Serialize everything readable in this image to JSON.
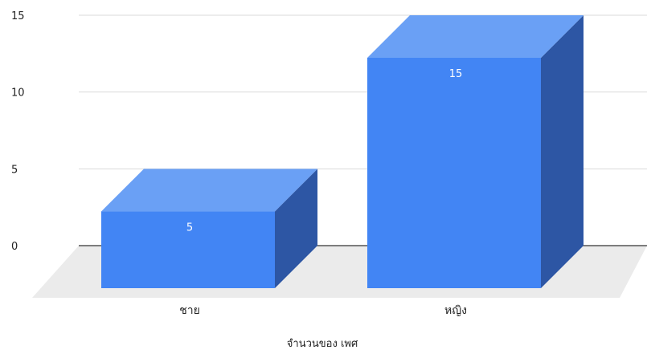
{
  "chart_data": {
    "type": "bar",
    "style": "3d",
    "categories": [
      "ชาย",
      "หญิง"
    ],
    "series": [
      {
        "values": [
          5,
          15
        ]
      }
    ],
    "data_labels": [
      "5",
      "15"
    ],
    "xlabel": "จำนวนของ เพศ",
    "ylabel": "",
    "ylim": [
      0,
      15
    ],
    "yticks": [
      0,
      5,
      10,
      15
    ],
    "grid": true,
    "legend": "none"
  },
  "colors": {
    "bar_front": "#4285f4",
    "bar_top": "#6aa0f5",
    "bar_side": "#2d56a4",
    "floor": "#ebebeb",
    "gridline": "#d9d9d9",
    "baseline": "#333333"
  }
}
